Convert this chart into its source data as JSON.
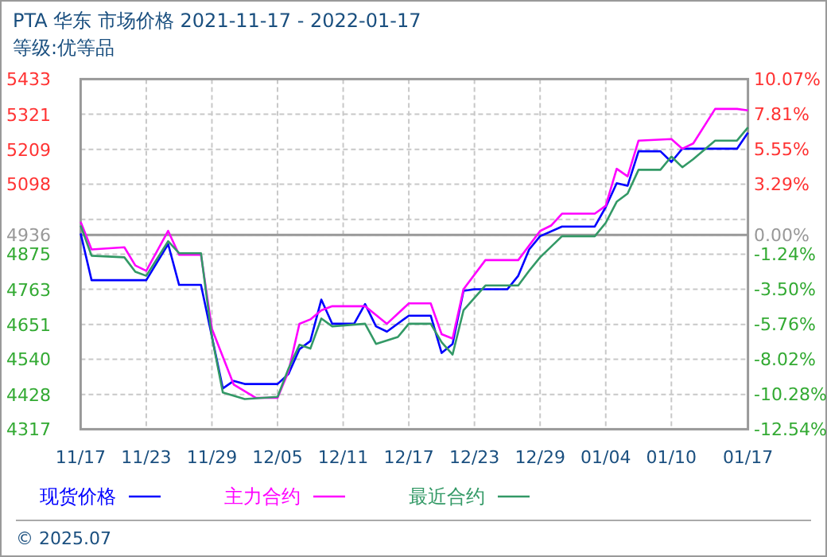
{
  "chart_data": {
    "type": "line",
    "title": "PTA 华东 市场价格 2021-11-17 - 2022-01-17",
    "subtitle": "等级:优等品",
    "xlim": [
      "2021-11-17",
      "2022-01-17"
    ],
    "xticks": [
      {
        "value": "2021-11-17",
        "label": "11/17"
      },
      {
        "value": "2021-11-23",
        "label": "11/23"
      },
      {
        "value": "2021-11-29",
        "label": "11/29"
      },
      {
        "value": "2021-12-05",
        "label": "12/05"
      },
      {
        "value": "2021-12-11",
        "label": "12/11"
      },
      {
        "value": "2021-12-17",
        "label": "12/17"
      },
      {
        "value": "2021-12-23",
        "label": "12/23"
      },
      {
        "value": "2021-12-29",
        "label": "12/29"
      },
      {
        "value": "2022-01-04",
        "label": "01/04"
      },
      {
        "value": "2022-01-10",
        "label": "01/10"
      },
      {
        "value": "2022-01-17",
        "label": "01/17"
      }
    ],
    "ylim": [
      4317,
      5433
    ],
    "yticks": [
      5433,
      5321,
      5209,
      5098,
      {
        "value": 4986,
        "label": null
      },
      4936,
      4875,
      4763,
      4651,
      4540,
      4428,
      4317
    ],
    "y2lim": [
      -12.54,
      10.07
    ],
    "y2ticks": [
      {
        "value": 10.07,
        "label": "10.07%"
      },
      {
        "value": 7.81,
        "label": "7.81%"
      },
      {
        "value": 5.55,
        "label": "5.55%"
      },
      {
        "value": 3.29,
        "label": "3.29%"
      },
      {
        "value": 0,
        "label": "0.00%"
      },
      {
        "value": -1.24,
        "label": "-1.24%"
      },
      {
        "value": -3.5,
        "label": "-3.50%"
      },
      {
        "value": -5.76,
        "label": "-5.76%"
      },
      {
        "value": -8.02,
        "label": "-8.02%"
      },
      {
        "value": -10.28,
        "label": "-10.28%"
      },
      {
        "value": -12.54,
        "label": "-12.54%"
      }
    ],
    "ref_lines": [
      {
        "axis": "y",
        "value": 4936,
        "label": null,
        "color": "#999999"
      }
    ],
    "grid": true,
    "legend": "bottom",
    "marker": "none",
    "line_style": "solid",
    "annotations": [
      "© 2025.07"
    ],
    "series": [
      {
        "name": "现货价格",
        "color": "#0000ff",
        "x": [
          "2021-11-17",
          "2021-11-18",
          "2021-11-23",
          "2021-11-25",
          "2021-11-26",
          "2021-11-28",
          "2021-11-30",
          "2021-12-01",
          "2021-12-02",
          "2021-12-05",
          "2021-12-06",
          "2021-12-07",
          "2021-12-08",
          "2021-12-09",
          "2021-12-10",
          "2021-12-12",
          "2021-12-13",
          "2021-12-14",
          "2021-12-15",
          "2021-12-17",
          "2021-12-19",
          "2021-12-20",
          "2021-12-21",
          "2021-12-22",
          "2021-12-23",
          "2021-12-26",
          "2021-12-27",
          "2021-12-28",
          "2021-12-29",
          "2021-12-31",
          "2022-01-03",
          "2022-01-04",
          "2022-01-05",
          "2022-01-06",
          "2022-01-07",
          "2022-01-09",
          "2022-01-10",
          "2022-01-11",
          "2022-01-16",
          "2022-01-17"
        ],
        "values": [
          4941,
          4792,
          4792,
          4907,
          4777,
          4777,
          4447,
          4471,
          4461,
          4461,
          4493,
          4572,
          4598,
          4730,
          4653,
          4653,
          4716,
          4645,
          4628,
          4679,
          4679,
          4560,
          4589,
          4758,
          4763,
          4763,
          4806,
          4890,
          4932,
          4963,
          4963,
          5025,
          5101,
          5093,
          5203,
          5203,
          5169,
          5211,
          5211,
          5262
        ]
      },
      {
        "name": "主力合约",
        "color": "#ff00ff",
        "x": [
          "2021-11-17",
          "2021-11-18",
          "2021-11-21",
          "2021-11-22",
          "2021-11-23",
          "2021-11-25",
          "2021-11-26",
          "2021-11-28",
          "2021-11-29",
          "2021-12-01",
          "2021-12-03",
          "2021-12-05",
          "2021-12-06",
          "2021-12-07",
          "2021-12-08",
          "2021-12-09",
          "2021-12-10",
          "2021-12-13",
          "2021-12-15",
          "2021-12-17",
          "2021-12-19",
          "2021-12-20",
          "2021-12-21",
          "2021-12-22",
          "2021-12-24",
          "2021-12-27",
          "2021-12-29",
          "2021-12-30",
          "2021-12-31",
          "2022-01-03",
          "2022-01-04",
          "2022-01-05",
          "2022-01-06",
          "2022-01-07",
          "2022-01-10",
          "2022-01-11",
          "2022-01-12",
          "2022-01-14",
          "2022-01-16",
          "2022-01-17"
        ],
        "values": [
          4978,
          4890,
          4897,
          4839,
          4822,
          4949,
          4873,
          4873,
          4637,
          4459,
          4417,
          4417,
          4501,
          4653,
          4667,
          4696,
          4709,
          4709,
          4653,
          4718,
          4718,
          4620,
          4606,
          4763,
          4856,
          4856,
          4949,
          4966,
          5004,
          5004,
          5029,
          5147,
          5123,
          5237,
          5242,
          5211,
          5228,
          5338,
          5338,
          5333
        ]
      },
      {
        "name": "最近合约",
        "color": "#339966",
        "x": [
          "2021-11-17",
          "2021-11-18",
          "2021-11-21",
          "2021-11-22",
          "2021-11-23",
          "2021-11-25",
          "2021-11-26",
          "2021-11-28",
          "2021-11-29",
          "2021-11-30",
          "2021-12-02",
          "2021-12-05",
          "2021-12-06",
          "2021-12-07",
          "2021-12-08",
          "2021-12-09",
          "2021-12-10",
          "2021-12-13",
          "2021-12-14",
          "2021-12-16",
          "2021-12-17",
          "2021-12-19",
          "2021-12-20",
          "2021-12-21",
          "2021-12-22",
          "2021-12-24",
          "2021-12-27",
          "2021-12-28",
          "2021-12-29",
          "2021-12-31",
          "2022-01-03",
          "2022-01-04",
          "2022-01-05",
          "2022-01-06",
          "2022-01-07",
          "2022-01-09",
          "2022-01-10",
          "2022-01-11",
          "2022-01-12",
          "2022-01-14",
          "2022-01-16",
          "2022-01-17"
        ],
        "values": [
          4966,
          4870,
          4865,
          4819,
          4806,
          4916,
          4878,
          4878,
          4611,
          4434,
          4413,
          4420,
          4510,
          4586,
          4574,
          4670,
          4645,
          4653,
          4589,
          4611,
          4653,
          4653,
          4594,
          4555,
          4696,
          4775,
          4775,
          4822,
          4865,
          4932,
          4932,
          4975,
          5042,
          5068,
          5144,
          5144,
          5186,
          5152,
          5178,
          5237,
          5237,
          5279
        ]
      }
    ]
  }
}
